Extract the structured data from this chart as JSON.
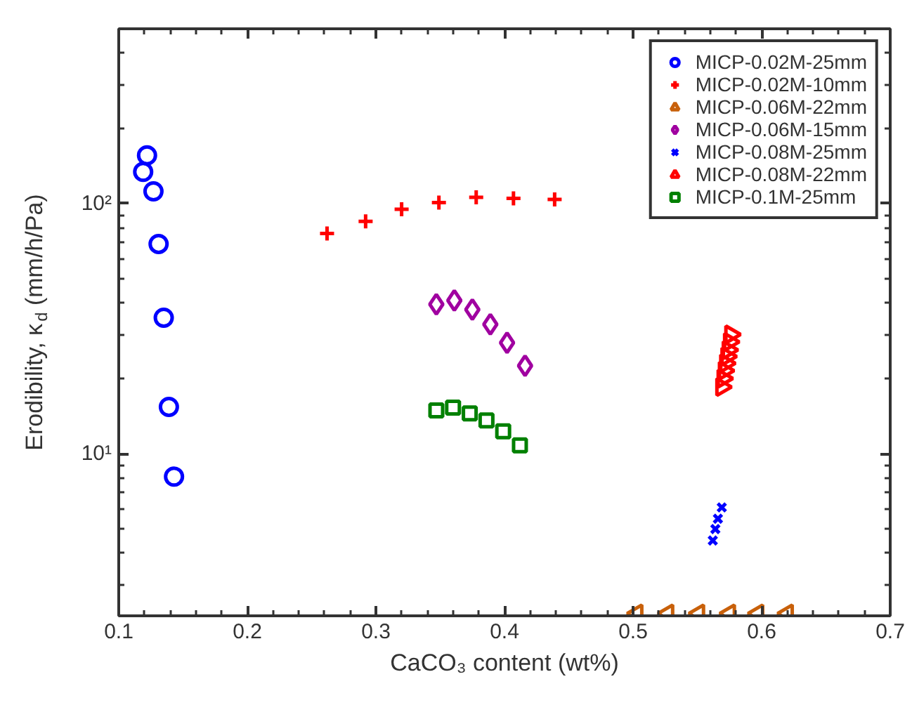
{
  "chart_data": {
    "type": "scatter",
    "xlabel": "CaCO₃ content (wt%)",
    "ylabel": "Erodibility, κ$_{d}$ (mm/h/Pa)",
    "log": "y",
    "grid": false,
    "legend": "top right",
    "xlim": [
      0.1,
      0.7
    ],
    "xticks": [
      0.1,
      0.2,
      0.3,
      0.4,
      0.5,
      0.6,
      0.7
    ],
    "ylim": [
      2.25,
      500
    ],
    "yticks": [
      {
        "value": 10,
        "label": "10¹"
      },
      {
        "value": 100,
        "label": "10²"
      }
    ],
    "series": [
      {
        "name": "MICP-0.02M-25mm",
        "color": "#0000ff",
        "marker": "circle",
        "x": [
          0.119,
          0.122,
          0.127,
          0.131,
          0.135,
          0.139,
          0.143
        ],
        "values": [
          134,
          156,
          112,
          69,
          35,
          15.4,
          8.1
        ]
      },
      {
        "name": "MICP-0.02M-10mm",
        "color": "#ff0000",
        "marker": "cross",
        "x": [
          0.262,
          0.292,
          0.32,
          0.349,
          0.378,
          0.407,
          0.439
        ],
        "values": [
          76,
          85,
          95,
          101,
          106,
          105,
          104
        ]
      },
      {
        "name": "MICP-0.06M-22mm",
        "color": "#c8600a",
        "marker": "triangle_left",
        "x": [
          0.503,
          0.527,
          0.551,
          0.575,
          0.597,
          0.62
        ],
        "values": [
          2.3,
          2.3,
          2.3,
          2.3,
          2.3,
          2.3
        ]
      },
      {
        "name": "MICP-0.06M-15mm",
        "color": "#a000a0",
        "marker": "diamond",
        "x": [
          0.347,
          0.361,
          0.375,
          0.389,
          0.402,
          0.416
        ],
        "values": [
          39.6,
          41,
          37.7,
          32.9,
          27.8,
          22.5
        ]
      },
      {
        "name": "MICP-0.08M-25mm",
        "color": "#0000ff",
        "marker": "x",
        "x": [
          0.562,
          0.564,
          0.566,
          0.569
        ],
        "values": [
          4.5,
          5.0,
          5.5,
          6.1
        ]
      },
      {
        "name": "MICP-0.08M-22mm",
        "color": "#ff0000",
        "marker": "triangle_right",
        "x": [
          0.569,
          0.57,
          0.571,
          0.572,
          0.573,
          0.574,
          0.575,
          0.576
        ],
        "values": [
          18.5,
          20,
          21.5,
          23,
          24.5,
          26,
          28,
          30
        ]
      },
      {
        "name": "MICP-0.1M-25mm",
        "color": "#008000",
        "marker": "square",
        "x": [
          0.347,
          0.36,
          0.373,
          0.386,
          0.399,
          0.412
        ],
        "values": [
          14.9,
          15.3,
          14.5,
          13.6,
          12.3,
          10.8
        ]
      }
    ]
  }
}
